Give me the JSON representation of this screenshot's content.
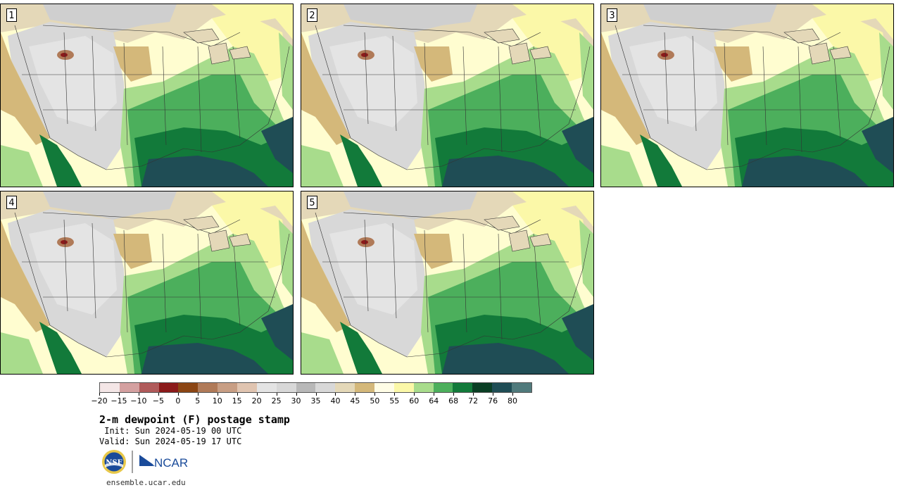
{
  "title": "2-m dewpoint (F) postage stamp",
  "init": " Init: Sun 2024-05-19 00 UTC",
  "valid": "Valid: Sun 2024-05-19 17 UTC",
  "url": "ensemble.ucar.edu",
  "logos": {
    "nsf": "NSF",
    "ncar": "NCAR"
  },
  "panels": [
    {
      "label": "1"
    },
    {
      "label": "2"
    },
    {
      "label": "3"
    },
    {
      "label": "4"
    },
    {
      "label": "5"
    }
  ],
  "colorbar": {
    "colors": [
      "#f4e6e6",
      "#d4a0a0",
      "#b05a5a",
      "#8b1a1a",
      "#8b4513",
      "#b07a58",
      "#c89e84",
      "#e0c4b0",
      "#e4e4e4",
      "#d8d8d8",
      "#b8b8b8",
      "#d8d8d8",
      "#e4d8b8",
      "#d4b87a",
      "#fffde6",
      "#fbf8a8",
      "#a8dc8c",
      "#4caf5c",
      "#127a3a",
      "#0a3e24",
      "#1f4d55",
      "#507a7c"
    ],
    "ticks": [
      "−20",
      "−15",
      "−10",
      "−5",
      "0",
      "5",
      "10",
      "15",
      "20",
      "25",
      "30",
      "35",
      "40",
      "45",
      "50",
      "55",
      "60",
      "64",
      "68",
      "72",
      "76",
      "80"
    ]
  }
}
